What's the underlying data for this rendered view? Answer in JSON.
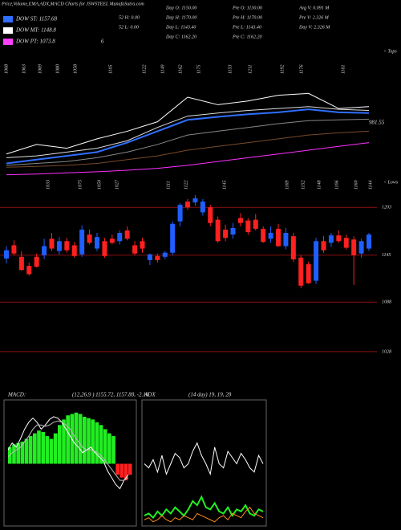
{
  "header": {
    "title": "Price,Volume,EMA,ADX,MACD Charts for JSWSTEEL MunafaSutra.com",
    "legend": [
      {
        "label": "DOW ST: 1157.68",
        "color": "#2f6fff"
      },
      {
        "label": "DOW MT: 1148.8",
        "color": "#ffffff"
      },
      {
        "label": "DOW PT: 1073.8",
        "color": "#ff40ff"
      }
    ],
    "extra": "6"
  },
  "info": [
    [
      "52 H: 0.00",
      "52 L: 0.00"
    ],
    [
      "Day O: 1150.00",
      "Day H: 1170.00",
      "Day L: 1143.40",
      "Day C: 1162.20"
    ],
    [
      "Pre O: 1130.00",
      "Pre H: 1170.00",
      "Pre L: 1143.40",
      "Pre C: 1162.20"
    ],
    [
      "Avg V: 0.091 M",
      "Pre V: 2.326 M",
      "Day V: 2.326 M"
    ]
  ],
  "chart_data": [
    {
      "type": "line",
      "x": [
        0,
        4,
        8,
        12,
        16,
        20,
        24,
        28,
        32,
        36,
        40,
        44,
        48
      ],
      "xlim": [
        0,
        48
      ],
      "ylim": [
        900,
        1250
      ],
      "series": [
        {
          "color": "#7a4a2a",
          "values": [
            925,
            927,
            930,
            935,
            945,
            955,
            970,
            980,
            990,
            1000,
            1010,
            1016,
            1020
          ]
        },
        {
          "color": "#ff30ff",
          "values": [
            905,
            907,
            910,
            913,
            917,
            922,
            930,
            940,
            950,
            960,
            970,
            980,
            990
          ]
        },
        {
          "color": "#888888",
          "values": [
            930,
            935,
            940,
            950,
            965,
            985,
            1010,
            1020,
            1030,
            1040,
            1048,
            1050,
            1052
          ]
        },
        {
          "color": "#dddddd",
          "values": [
            950,
            955,
            965,
            975,
            995,
            1030,
            1060,
            1068,
            1075,
            1080,
            1085,
            1078,
            1075
          ]
        },
        {
          "color": "#2f6fff",
          "values": [
            935,
            945,
            955,
            965,
            990,
            1020,
            1050,
            1058,
            1065,
            1070,
            1078,
            1070,
            1068
          ]
        },
        {
          "color": "#ffffff",
          "values": [
            960,
            985,
            975,
            1000,
            1020,
            1045,
            1110,
            1090,
            1100,
            1115,
            1120,
            1080,
            1085
          ]
        }
      ],
      "annotation": "981.55",
      "tops_label": "< Tops",
      "lows_label": "< Lows",
      "tops": [
        "1068",
        "1063",
        "1069",
        "1080",
        "1058",
        "1105",
        "1122",
        "1149",
        "1162",
        "1175",
        "1153",
        "1211",
        "1192",
        "1176",
        "1161"
      ],
      "lows": [
        "1033",
        "1075",
        "1050",
        "1027",
        "1111",
        "1122",
        "1145",
        "1169",
        "1152",
        "1148",
        "1106",
        "1160",
        "1144"
      ]
    },
    {
      "type": "candlestick",
      "up_color": "#1f5fff",
      "down_color": "#ff2020",
      "ylim": [
        987,
        1211
      ],
      "yticks": [
        1203,
        1145,
        1088,
        1028
      ],
      "candles": [
        [
          1141,
          1156,
          1135,
          1151
        ],
        [
          1157,
          1163,
          1145,
          1147
        ],
        [
          1143,
          1150,
          1126,
          1127
        ],
        [
          1132,
          1136,
          1120,
          1122
        ],
        [
          1143,
          1147,
          1130,
          1131
        ],
        [
          1145,
          1165,
          1140,
          1156
        ],
        [
          1165,
          1172,
          1150,
          1153
        ],
        [
          1150,
          1167,
          1146,
          1162
        ],
        [
          1162,
          1166,
          1148,
          1151
        ],
        [
          1157,
          1161,
          1142,
          1144
        ],
        [
          1146,
          1181,
          1143,
          1176
        ],
        [
          1170,
          1176,
          1158,
          1160
        ],
        [
          1153,
          1172,
          1150,
          1167
        ],
        [
          1162,
          1166,
          1142,
          1144
        ],
        [
          1165,
          1170,
          1158,
          1160
        ],
        [
          1162,
          1175,
          1158,
          1172
        ],
        [
          1175,
          1180,
          1163,
          1165
        ],
        [
          1157,
          1162,
          1145,
          1147
        ],
        [
          1162,
          1166,
          1148,
          1153
        ],
        [
          1139,
          1147,
          1133,
          1146
        ],
        [
          1144,
          1147,
          1136,
          1139
        ],
        [
          1143,
          1150,
          1140,
          1148
        ],
        [
          1148,
          1186,
          1145,
          1183
        ],
        [
          1186,
          1208,
          1180,
          1206
        ],
        [
          1210,
          1213,
          1200,
          1203
        ],
        [
          1209,
          1218,
          1205,
          1214
        ],
        [
          1197,
          1213,
          1193,
          1210
        ],
        [
          1203,
          1206,
          1180,
          1184
        ],
        [
          1188,
          1192,
          1160,
          1162
        ],
        [
          1176,
          1182,
          1162,
          1166
        ],
        [
          1170,
          1184,
          1165,
          1178
        ],
        [
          1190,
          1196,
          1180,
          1184
        ],
        [
          1187,
          1190,
          1170,
          1173
        ],
        [
          1188,
          1195,
          1175,
          1177
        ],
        [
          1177,
          1180,
          1160,
          1161
        ],
        [
          1165,
          1180,
          1160,
          1172
        ],
        [
          1177,
          1183,
          1155,
          1156
        ],
        [
          1156,
          1178,
          1152,
          1172
        ],
        [
          1168,
          1172,
          1137,
          1140
        ],
        [
          1142,
          1145,
          1105,
          1108
        ],
        [
          1134,
          1137,
          1110,
          1111
        ],
        [
          1114,
          1166,
          1110,
          1162
        ],
        [
          1162,
          1168,
          1148,
          1151
        ],
        [
          1160,
          1172,
          1155,
          1169
        ],
        [
          1169,
          1175,
          1160,
          1162
        ],
        [
          1166,
          1170,
          1152,
          1154
        ],
        [
          1164,
          1168,
          1109,
          1145
        ],
        [
          1147,
          1165,
          1142,
          1162
        ],
        [
          1153,
          1172,
          1150,
          1170
        ]
      ]
    },
    {
      "type": "macd",
      "title": "MACD:",
      "subtitle": "(12,26,9 ) 1155.72, 1157.88, -2.16",
      "ylim": [
        -45,
        45
      ],
      "up_color": "#22ee22",
      "down_color": "#ff2020",
      "histogram": [
        12,
        14,
        15,
        16,
        18,
        20,
        22,
        24,
        23,
        20,
        18,
        22,
        28,
        32,
        35,
        36,
        37,
        36,
        34,
        33,
        32,
        30,
        28,
        25,
        22,
        20,
        -8,
        -10,
        -12,
        -8
      ],
      "series": [
        {
          "color": "#ffffff",
          "values": [
            10,
            15,
            12,
            18,
            25,
            30,
            33,
            30,
            25,
            28,
            32,
            34,
            33,
            30,
            25,
            20,
            15,
            12,
            8,
            10,
            12,
            8,
            5,
            2,
            -5,
            -10,
            -15,
            -18,
            -12,
            -8
          ]
        },
        {
          "color": "#bbbbbb",
          "values": [
            5,
            8,
            10,
            12,
            16,
            20,
            25,
            28,
            28,
            27,
            28,
            30,
            31,
            30,
            28,
            25,
            20,
            16,
            12,
            10,
            10,
            9,
            7,
            4,
            0,
            -4,
            -8,
            -12,
            -12,
            -10
          ]
        }
      ]
    },
    {
      "type": "adx",
      "title": "ADX",
      "subtitle": "(14  day) 19, 19, 28",
      "ylim": [
        0,
        60
      ],
      "series": [
        {
          "color": "#ffffff",
          "values": [
            30,
            28,
            32,
            26,
            34,
            25,
            30,
            35,
            33,
            28,
            30,
            36,
            40,
            34,
            30,
            25,
            38,
            30,
            28,
            36,
            33,
            30,
            35,
            32,
            28,
            26,
            34,
            30
          ]
        },
        {
          "color": "#22ee22",
          "values": [
            5,
            6,
            4,
            7,
            5,
            8,
            6,
            9,
            7,
            5,
            8,
            12,
            10,
            14,
            9,
            8,
            11,
            7,
            6,
            9,
            5,
            8,
            7,
            10,
            6,
            5,
            8,
            7
          ]
        },
        {
          "color": "#ff8c1a",
          "values": [
            3,
            4,
            2,
            3,
            5,
            3,
            2,
            4,
            3,
            5,
            4,
            3,
            6,
            5,
            4,
            3,
            2,
            4,
            5,
            3,
            6,
            5,
            4,
            7,
            9,
            6,
            5,
            4
          ]
        }
      ]
    }
  ]
}
